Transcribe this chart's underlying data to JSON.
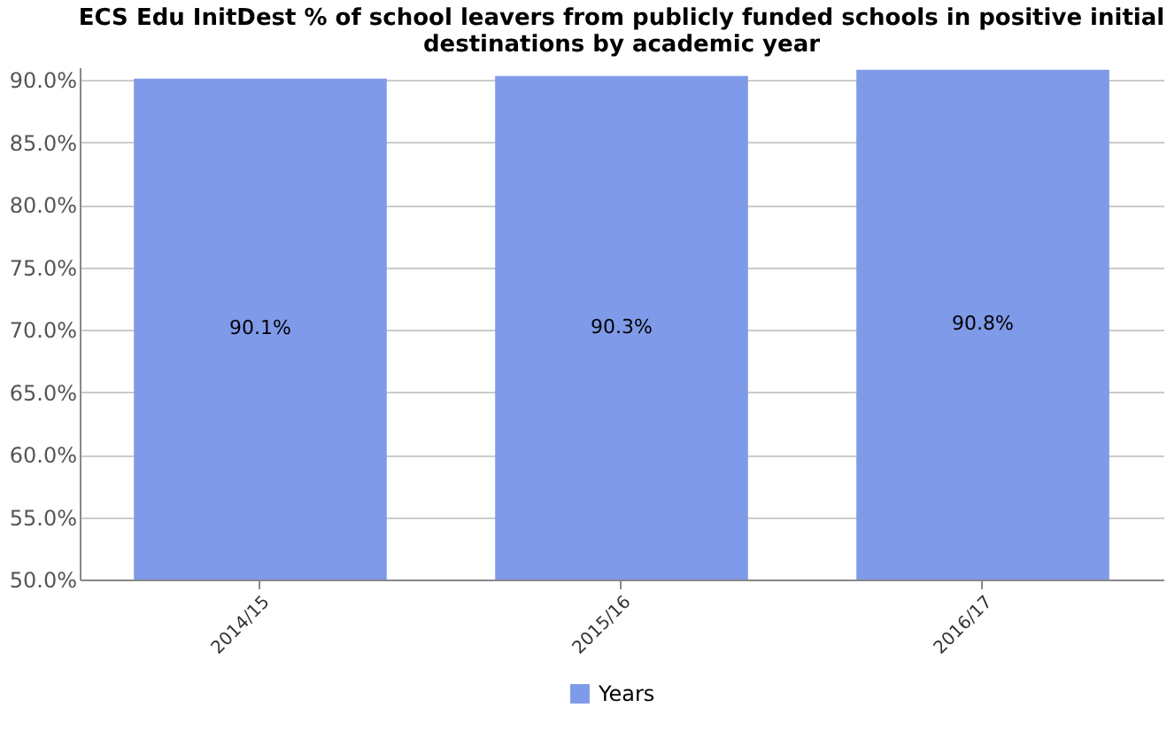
{
  "chart_data": {
    "type": "bar",
    "title": "ECS Edu InitDest % of school leavers from publicly funded schools in positive initial destinations by academic year",
    "categories": [
      "2014/15",
      "2015/16",
      "2016/17"
    ],
    "series": [
      {
        "name": "Years",
        "color": "#7f9ae8",
        "values": [
          90.1,
          90.3,
          90.8
        ],
        "value_labels": [
          "90.1%",
          "90.3%",
          "90.8%"
        ]
      }
    ],
    "ylim": [
      50,
      91
    ],
    "yticks": [
      {
        "value": 50,
        "label": "50.0%"
      },
      {
        "value": 55,
        "label": "55.0%"
      },
      {
        "value": 60,
        "label": "60.0%"
      },
      {
        "value": 65,
        "label": "65.0%"
      },
      {
        "value": 70,
        "label": "70.0%"
      },
      {
        "value": 75,
        "label": "75.0%"
      },
      {
        "value": 80,
        "label": "80.0%"
      },
      {
        "value": 85,
        "label": "85.0%"
      },
      {
        "value": 90,
        "label": "90.0%"
      }
    ],
    "grid": "y",
    "legend": "bottom"
  }
}
